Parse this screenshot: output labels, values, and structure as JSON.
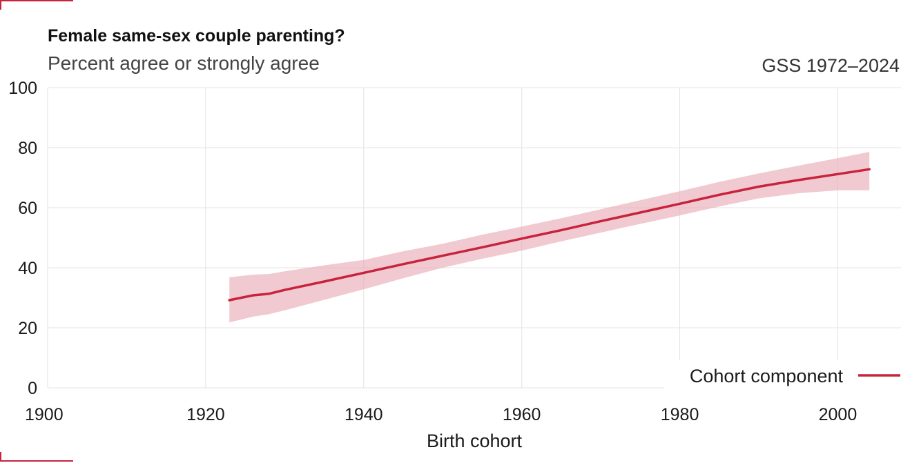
{
  "header": {
    "title": "Female same-sex couple parenting?",
    "subtitle": "Percent agree or strongly agree",
    "source": "GSS 1972–2024"
  },
  "colors": {
    "accent": "#c8233d",
    "band": "#e8a5b0",
    "grid": "#e3e3e3"
  },
  "chart_data": {
    "type": "line",
    "title": "Female same-sex couple parenting?",
    "subtitle": "Percent agree or strongly agree",
    "xlabel": "Birth cohort",
    "ylabel": "",
    "xlim": [
      1900,
      2008
    ],
    "ylim": [
      0,
      100
    ],
    "xticks": [
      1900,
      1920,
      1940,
      1960,
      1980,
      2000
    ],
    "yticks": [
      0,
      20,
      40,
      60,
      80,
      100
    ],
    "grid": true,
    "legend": "bottom-right",
    "series": [
      {
        "name": "Cohort component",
        "color": "#c8233d",
        "x": [
          1923,
          1926,
          1928,
          1930,
          1935,
          1940,
          1945,
          1950,
          1955,
          1960,
          1965,
          1970,
          1975,
          1980,
          1985,
          1990,
          1995,
          2000,
          2004
        ],
        "y": [
          29.2,
          30.8,
          31.3,
          32.6,
          35.4,
          38.3,
          41.2,
          44.0,
          46.8,
          49.7,
          52.5,
          55.5,
          58.4,
          61.3,
          64.3,
          67.0,
          69.2,
          71.2,
          72.8
        ],
        "lower": [
          21.8,
          23.7,
          24.5,
          25.8,
          29.3,
          32.8,
          36.5,
          40.0,
          43.0,
          45.7,
          48.8,
          51.7,
          54.6,
          57.4,
          60.4,
          63.1,
          64.8,
          65.8,
          65.8
        ],
        "upper": [
          36.8,
          37.7,
          37.9,
          38.8,
          40.8,
          42.6,
          45.5,
          48.0,
          51.0,
          53.7,
          56.5,
          59.5,
          62.5,
          65.5,
          68.6,
          71.4,
          74.0,
          76.5,
          78.6
        ]
      }
    ]
  }
}
